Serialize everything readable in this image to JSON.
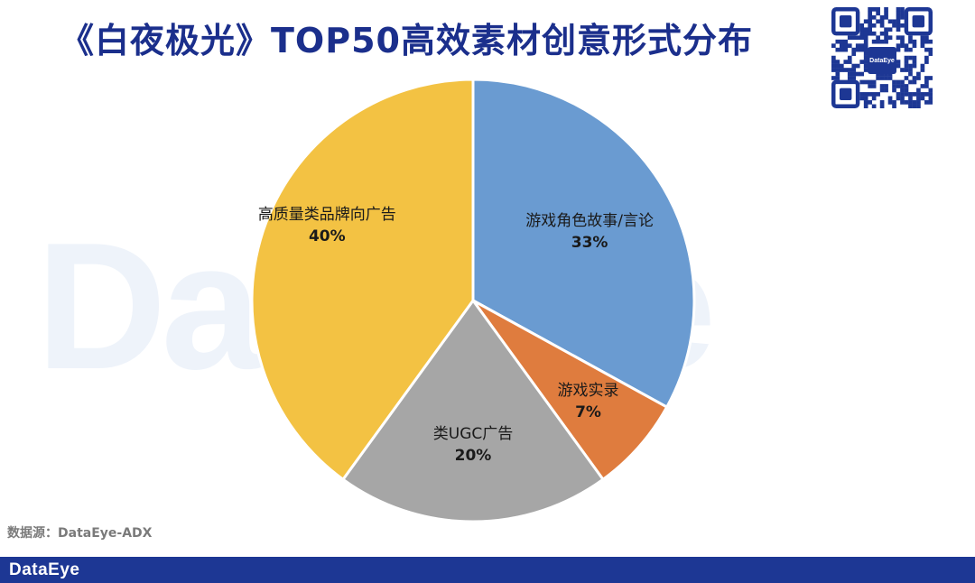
{
  "title": "《白夜极光》TOP50高效素材创意形式分布",
  "watermark_text": "DataEye",
  "qr_logo_text": "DataEye",
  "source": "数据源：DataEye-ADX",
  "footer": {
    "logo_text": "DataEye",
    "color": "#1d3794"
  },
  "chart_data": {
    "type": "pie",
    "title": "《白夜极光》TOP50高效素材创意形式分布",
    "start_angle_deg": 0,
    "direction": "clockwise",
    "slices": [
      {
        "label": "游戏角色故事/言论",
        "value": 33,
        "value_label": "33%",
        "color": "#6a9bd1"
      },
      {
        "label": "游戏实录",
        "value": 7,
        "value_label": "7%",
        "color": "#df7c3e"
      },
      {
        "label": "类UGC广告",
        "value": 20,
        "value_label": "20%",
        "color": "#a6a6a6"
      },
      {
        "label": "高质量类品牌向广告",
        "value": 40,
        "value_label": "40%",
        "color": "#f3c243"
      }
    ]
  }
}
